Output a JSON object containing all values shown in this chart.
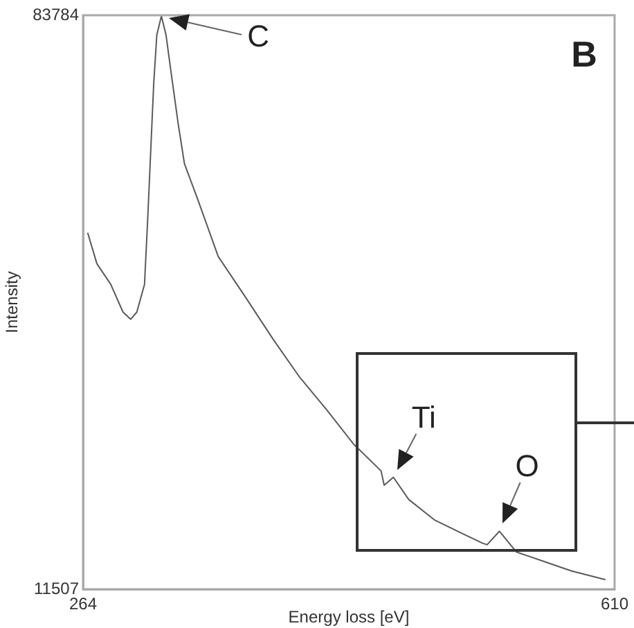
{
  "chart_data": {
    "type": "line",
    "xlabel": "Energy loss [eV]",
    "ylabel": "Intensity",
    "xlim": [
      264,
      610
    ],
    "ylim": [
      11507,
      83784
    ],
    "xticks": [
      264,
      610
    ],
    "yticks": [
      11507,
      83784
    ],
    "legend": false,
    "marker": "none",
    "line_style": "solid",
    "annotations": [
      "B",
      {
        "text": "C",
        "x": 315,
        "y": 83700
      },
      {
        "text": "Ti",
        "x": 466,
        "y": 25600
      },
      {
        "text": "O",
        "x": 535,
        "y": 18800
      }
    ],
    "series": [
      {
        "color": "#5a5a5a",
        "x": [
          267,
          273,
          282,
          290,
          295,
          299,
          304,
          306,
          310,
          312,
          315,
          318,
          321,
          326,
          330,
          339,
          352,
          370,
          388,
          405,
          423,
          440,
          458,
          460,
          466,
          476,
          493,
          511,
          524,
          527,
          535,
          546,
          564,
          582,
          604
        ],
        "values": [
          56400,
          52500,
          49900,
          46400,
          45500,
          46400,
          49900,
          57800,
          75200,
          81300,
          83700,
          81300,
          77000,
          70000,
          65100,
          60400,
          53400,
          48200,
          42900,
          38200,
          34000,
          29800,
          26400,
          24600,
          25600,
          22800,
          20200,
          18500,
          17300,
          17100,
          18800,
          16200,
          15000,
          13800,
          12700
        ]
      }
    ]
  }
}
